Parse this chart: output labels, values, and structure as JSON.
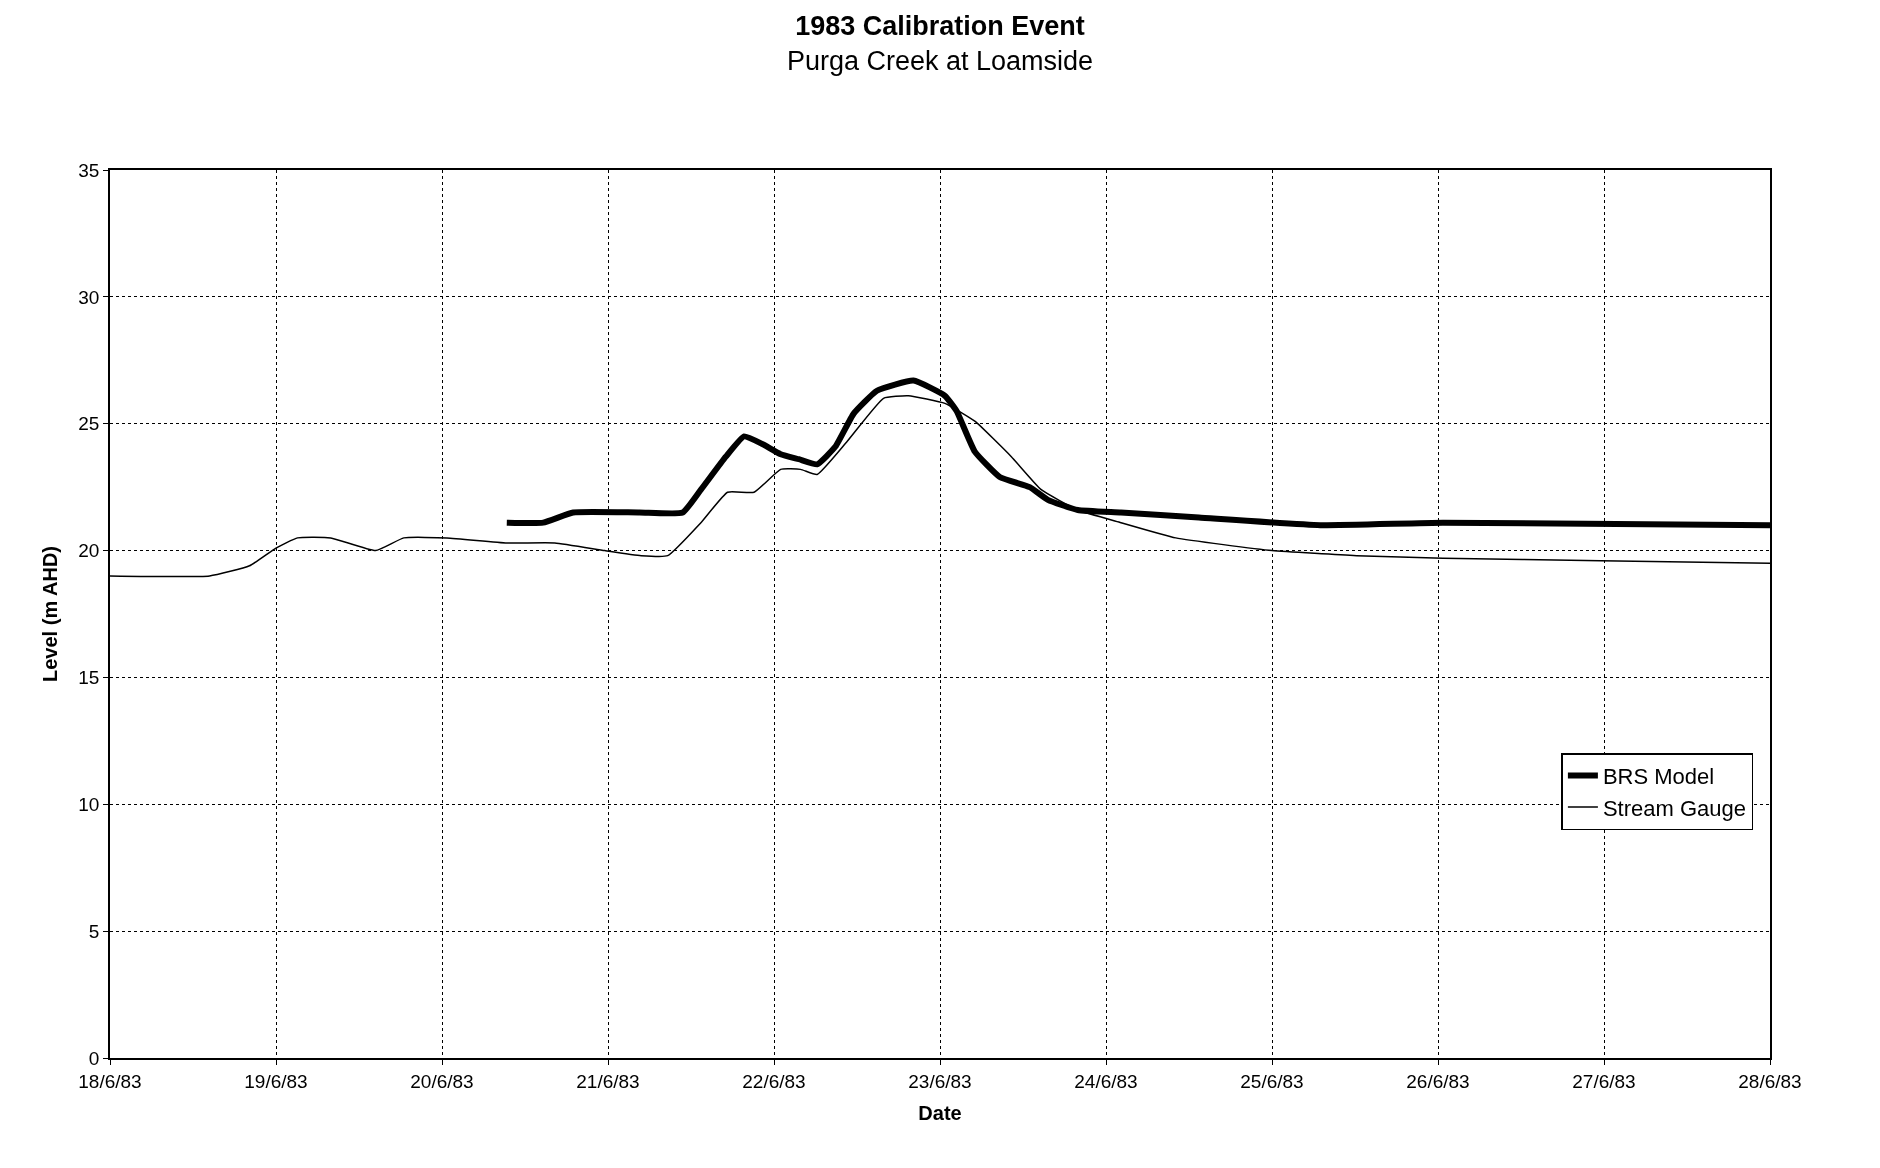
{
  "chart_data": {
    "type": "line",
    "title": "1983 Calibration Event",
    "subtitle": "Purga Creek at Loamside",
    "xlabel": "Date",
    "ylabel": "Level (m AHD)",
    "xlim": [
      "1983-06-18",
      "1983-06-28"
    ],
    "xticks": [
      {
        "value": "1983-06-18",
        "label": "18/6/83"
      },
      {
        "value": "1983-06-19",
        "label": "19/6/83"
      },
      {
        "value": "1983-06-20",
        "label": "20/6/83"
      },
      {
        "value": "1983-06-21",
        "label": "21/6/83"
      },
      {
        "value": "1983-06-22",
        "label": "22/6/83"
      },
      {
        "value": "1983-06-23",
        "label": "23/6/83"
      },
      {
        "value": "1983-06-24",
        "label": "24/6/83"
      },
      {
        "value": "1983-06-25",
        "label": "25/6/83"
      },
      {
        "value": "1983-06-26",
        "label": "26/6/83"
      },
      {
        "value": "1983-06-27",
        "label": "27/6/83"
      },
      {
        "value": "1983-06-28",
        "label": "28/6/83"
      }
    ],
    "ylim": [
      0,
      35
    ],
    "yticks": [
      0,
      5,
      10,
      15,
      20,
      25,
      30,
      35
    ],
    "grid": true,
    "legend": "right",
    "marker": "none",
    "series": [
      {
        "name": "BRS Model",
        "color": "#000000",
        "x": [
          "1983-06-20T09:22",
          "1983-06-20T14:38",
          "1983-06-20T18:58",
          "1983-06-21T04:34",
          "1983-06-21T10:48",
          "1983-06-21T13:26",
          "1983-06-21T17:02",
          "1983-06-21T19:41",
          "1983-06-21T22:19",
          "1983-06-22T00:58",
          "1983-06-22T03:36",
          "1983-06-22T06:14",
          "1983-06-22T08:53",
          "1983-06-22T11:31",
          "1983-06-22T14:53",
          "1983-06-22T20:10",
          "1983-06-23T00:43",
          "1983-06-23T02:24",
          "1983-06-23T05:02",
          "1983-06-23T08:38",
          "1983-06-23T12:58",
          "1983-06-23T15:36",
          "1983-06-23T19:55",
          "1983-06-24T02:10",
          "1983-06-24T13:26",
          "1983-06-25T06:58",
          "1983-06-26T00:43",
          "1983-06-28T00:00"
        ],
        "values": [
          21.1,
          21.1,
          21.5,
          21.5,
          21.5,
          22.4,
          23.7,
          24.5,
          24.2,
          23.8,
          23.6,
          23.4,
          24.1,
          25.4,
          26.3,
          26.7,
          26.1,
          25.5,
          23.9,
          22.9,
          22.5,
          22.0,
          21.6,
          21.5,
          21.3,
          21.0,
          21.1,
          21.0
        ]
      },
      {
        "name": "Stream Gauge",
        "color": "#000000",
        "x": [
          "1983-06-18T00:00",
          "1983-06-18T14:24",
          "1983-06-18T20:10",
          "1983-06-19T00:00",
          "1983-06-19T03:07",
          "1983-06-19T07:55",
          "1983-06-19T14:24",
          "1983-06-19T18:29",
          "1983-06-20T00:43",
          "1983-06-20T09:22",
          "1983-06-20T16:19",
          "1983-06-20T23:31",
          "1983-06-21T04:48",
          "1983-06-21T08:38",
          "1983-06-21T13:26",
          "1983-06-21T17:17",
          "1983-06-21T21:07",
          "1983-06-22T00:58",
          "1983-06-22T03:50",
          "1983-06-22T06:14",
          "1983-06-22T10:34",
          "1983-06-22T15:50",
          "1983-06-22T19:26",
          "1983-06-23T00:43",
          "1983-06-23T05:02",
          "1983-06-23T10:19",
          "1983-06-23T14:38",
          "1983-06-23T19:55",
          "1983-06-24T02:10",
          "1983-06-24T10:05",
          "1983-06-25T00:00",
          "1983-06-25T12:14",
          "1983-06-26T00:43",
          "1983-06-26T23:31",
          "1983-06-28T00:00"
        ],
        "values": [
          19.0,
          19.0,
          19.4,
          20.1,
          20.5,
          20.5,
          20.0,
          20.5,
          20.5,
          20.3,
          20.3,
          20.0,
          19.8,
          19.8,
          21.1,
          22.3,
          22.3,
          23.2,
          23.2,
          23.0,
          24.3,
          26.0,
          26.1,
          25.8,
          25.1,
          23.7,
          22.4,
          21.6,
          21.1,
          20.5,
          20.0,
          19.8,
          19.7,
          19.6,
          19.5
        ]
      }
    ]
  }
}
